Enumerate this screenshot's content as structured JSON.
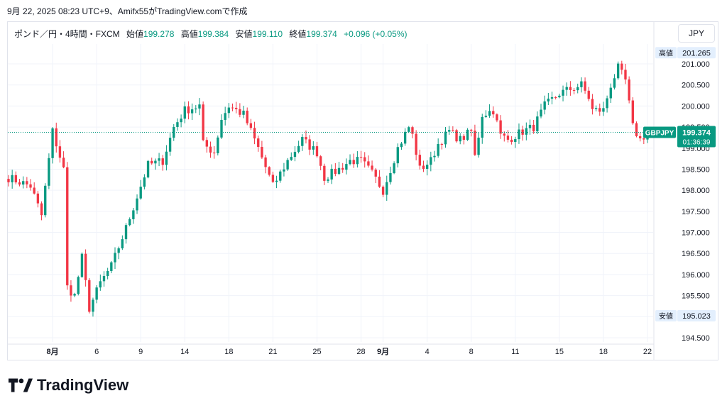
{
  "caption": "9月 22, 2025 08:23 UTC+9、Amifx55がTradingView.comで作成",
  "legend": {
    "symbol": "ポンド／円・4時間・FXCM",
    "open_label": "始値",
    "open": "199.278",
    "high_label": "高値",
    "high": "199.384",
    "low_label": "安値",
    "low": "199.110",
    "close_label": "終値",
    "close": "199.374",
    "change": "+0.096 (+0.05%)"
  },
  "currency_button": "JPY",
  "brand": "TradingView",
  "colors": {
    "up": "#089981",
    "down": "#f23645",
    "grid": "#f0f3fa",
    "text": "#131722"
  },
  "chart_data": {
    "type": "candlestick",
    "symbol_tag": "GBPJPY",
    "last_price": "199.374",
    "countdown": "01:36:39",
    "high_marker": {
      "label": "高値",
      "value": "201.265"
    },
    "low_marker": {
      "label": "安値",
      "value": "195.023"
    },
    "ylim": [
      194.3,
      201.9
    ],
    "y_ticks": [
      "194.500",
      "195.000",
      "195.500",
      "196.000",
      "196.500",
      "197.000",
      "197.500",
      "198.000",
      "198.500",
      "199.000",
      "199.500",
      "200.000",
      "200.500",
      "201.000"
    ],
    "x_ticks": [
      {
        "label": "8月",
        "bar": 12,
        "bold": true
      },
      {
        "label": "6",
        "bar": 24
      },
      {
        "label": "9",
        "bar": 36
      },
      {
        "label": "14",
        "bar": 48
      },
      {
        "label": "18",
        "bar": 60
      },
      {
        "label": "21",
        "bar": 72
      },
      {
        "label": "25",
        "bar": 84
      },
      {
        "label": "28",
        "bar": 96
      },
      {
        "label": "9月",
        "bar": 102,
        "bold": true
      },
      {
        "label": "4",
        "bar": 114
      },
      {
        "label": "8",
        "bar": 126
      },
      {
        "label": "11",
        "bar": 138
      },
      {
        "label": "15",
        "bar": 150
      },
      {
        "label": "18",
        "bar": 162
      },
      {
        "label": "22",
        "bar": 174
      }
    ],
    "path_points": [
      [
        0,
        198.3
      ],
      [
        6,
        198.1
      ],
      [
        9,
        197.4
      ],
      [
        12,
        199.4
      ],
      [
        15,
        198.5
      ],
      [
        16,
        195.7
      ],
      [
        18,
        195.5
      ],
      [
        20,
        196.4
      ],
      [
        22,
        195.2
      ],
      [
        25,
        195.8
      ],
      [
        28,
        196.2
      ],
      [
        32,
        197.1
      ],
      [
        36,
        198.1
      ],
      [
        38,
        198.6
      ],
      [
        42,
        198.7
      ],
      [
        45,
        199.5
      ],
      [
        48,
        199.9
      ],
      [
        52,
        200.0
      ],
      [
        53,
        199.1
      ],
      [
        56,
        198.9
      ],
      [
        58,
        199.7
      ],
      [
        60,
        200.0
      ],
      [
        64,
        199.8
      ],
      [
        68,
        199.0
      ],
      [
        72,
        198.1
      ],
      [
        76,
        198.7
      ],
      [
        80,
        199.2
      ],
      [
        84,
        198.9
      ],
      [
        86,
        198.3
      ],
      [
        90,
        198.5
      ],
      [
        93,
        198.7
      ],
      [
        96,
        198.7
      ],
      [
        99,
        198.4
      ],
      [
        102,
        198.0
      ],
      [
        106,
        199.0
      ],
      [
        109,
        199.5
      ],
      [
        110,
        199.3
      ],
      [
        112,
        198.5
      ],
      [
        115,
        198.7
      ],
      [
        117,
        199.1
      ],
      [
        120,
        199.4
      ],
      [
        123,
        199.2
      ],
      [
        126,
        199.4
      ],
      [
        127,
        198.8
      ],
      [
        129,
        199.8
      ],
      [
        132,
        199.9
      ],
      [
        134,
        199.3
      ],
      [
        136,
        199.2
      ],
      [
        140,
        199.4
      ],
      [
        143,
        199.5
      ],
      [
        146,
        200.0
      ],
      [
        150,
        200.3
      ],
      [
        153,
        200.4
      ],
      [
        156,
        200.5
      ],
      [
        158,
        200.2
      ],
      [
        159,
        199.9
      ],
      [
        162,
        199.9
      ],
      [
        164,
        200.5
      ],
      [
        166,
        200.9
      ],
      [
        168,
        200.6
      ],
      [
        170,
        199.5
      ],
      [
        172,
        199.2
      ],
      [
        174,
        199.37
      ]
    ]
  }
}
